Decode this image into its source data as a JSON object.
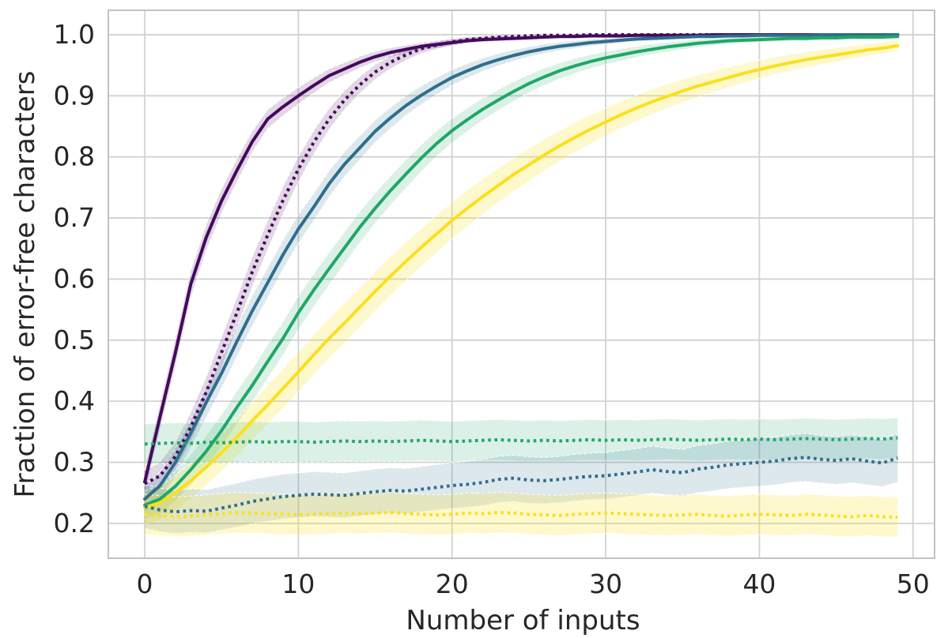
{
  "figure": {
    "x_axis_label": "Number of inputs",
    "y_axis_label": "Fraction of error-free characters"
  },
  "chart_data": {
    "type": "line",
    "title": "",
    "xlabel": "Number of inputs",
    "ylabel": "Fraction of error-free characters",
    "grid": true,
    "legend_position": "none",
    "xlim": [
      -2.37,
      51.4
    ],
    "ylim": [
      0.143,
      1.04
    ],
    "xticks": [
      0,
      10,
      20,
      30,
      40,
      50
    ],
    "yticks": [
      0.2,
      0.3,
      0.4,
      0.5,
      0.6,
      0.7,
      0.8,
      0.9,
      1.0
    ],
    "grid_color": "#d2d2d2",
    "spine_color": "#c2c2c2",
    "tick_text_color": "#262626",
    "palette": {
      "purple": "#45095d",
      "blue": "#2e6d8e",
      "green": "#1fa768",
      "yellow": "#fbe01a"
    },
    "x": [
      0,
      1,
      2,
      3,
      4,
      5,
      6,
      7,
      8,
      9,
      10,
      11,
      12,
      13,
      14,
      15,
      16,
      17,
      18,
      19,
      20,
      21,
      22,
      23,
      24,
      25,
      26,
      27,
      28,
      29,
      30,
      31,
      32,
      33,
      34,
      35,
      36,
      37,
      38,
      39,
      40,
      41,
      42,
      43,
      44,
      45,
      46,
      47,
      48,
      49
    ],
    "series": [
      {
        "name": "purple-solid",
        "color": "purple",
        "style": "solid",
        "band_opacity": 0.16,
        "ci_scale": 0.045,
        "values": [
          0.268,
          0.375,
          0.48,
          0.592,
          0.668,
          0.728,
          0.778,
          0.825,
          0.862,
          0.882,
          0.9,
          0.917,
          0.933,
          0.944,
          0.955,
          0.964,
          0.971,
          0.976,
          0.981,
          0.984,
          0.987,
          0.99,
          0.992,
          0.993,
          0.994,
          0.995,
          0.996,
          0.997,
          0.997,
          0.998,
          0.998,
          0.998,
          0.999,
          0.999,
          0.999,
          0.999,
          0.999,
          1.0,
          1.0,
          1.0,
          1.0,
          1.0,
          1.0,
          1.0,
          1.0,
          1.0,
          1.0,
          1.0,
          1.0,
          1.0
        ]
      },
      {
        "name": "purple-dotted",
        "color": "purple",
        "style": "dotted",
        "band_opacity": 0.16,
        "ci_scale": 0.05,
        "values": [
          0.265,
          0.278,
          0.31,
          0.358,
          0.415,
          0.48,
          0.545,
          0.612,
          0.672,
          0.729,
          0.78,
          0.824,
          0.862,
          0.893,
          0.918,
          0.939,
          0.955,
          0.967,
          0.977,
          0.983,
          0.988,
          0.992,
          0.994,
          0.996,
          0.997,
          0.998,
          0.999,
          0.999,
          0.999,
          1.0,
          1.0,
          1.0,
          1.0,
          1.0,
          1.0,
          1.0,
          1.0,
          1.0,
          1.0,
          1.0,
          1.0,
          1.0,
          1.0,
          1.0,
          1.0,
          1.0,
          1.0,
          1.0,
          1.0,
          1.0
        ]
      },
      {
        "name": "blue-solid",
        "color": "blue",
        "style": "solid",
        "band_opacity": 0.16,
        "ci_scale": 0.05,
        "values": [
          0.24,
          0.262,
          0.3,
          0.348,
          0.398,
          0.446,
          0.498,
          0.548,
          0.594,
          0.64,
          0.682,
          0.718,
          0.756,
          0.788,
          0.815,
          0.842,
          0.864,
          0.884,
          0.901,
          0.916,
          0.93,
          0.941,
          0.951,
          0.959,
          0.966,
          0.972,
          0.977,
          0.981,
          0.984,
          0.987,
          0.989,
          0.991,
          0.993,
          0.994,
          0.995,
          0.996,
          0.997,
          0.997,
          0.998,
          0.998,
          0.999,
          0.999,
          0.999,
          0.999,
          1.0,
          1.0,
          1.0,
          1.0,
          1.0,
          1.0
        ]
      },
      {
        "name": "green-solid",
        "color": "green",
        "style": "solid",
        "band_opacity": 0.16,
        "ci_scale": 0.055,
        "values": [
          0.23,
          0.24,
          0.261,
          0.288,
          0.318,
          0.352,
          0.39,
          0.426,
          0.465,
          0.503,
          0.545,
          0.582,
          0.617,
          0.651,
          0.685,
          0.716,
          0.745,
          0.772,
          0.798,
          0.822,
          0.843,
          0.861,
          0.878,
          0.893,
          0.907,
          0.92,
          0.931,
          0.941,
          0.949,
          0.956,
          0.962,
          0.967,
          0.972,
          0.976,
          0.98,
          0.983,
          0.986,
          0.988,
          0.99,
          0.991,
          0.992,
          0.993,
          0.994,
          0.994,
          0.995,
          0.995,
          0.996,
          0.996,
          0.996,
          0.997
        ]
      },
      {
        "name": "yellow-solid",
        "color": "yellow",
        "style": "solid",
        "band_opacity": 0.22,
        "ci_scale": 0.065,
        "values": [
          0.226,
          0.234,
          0.25,
          0.27,
          0.292,
          0.316,
          0.341,
          0.368,
          0.394,
          0.421,
          0.448,
          0.476,
          0.503,
          0.528,
          0.554,
          0.58,
          0.605,
          0.629,
          0.652,
          0.674,
          0.696,
          0.716,
          0.735,
          0.753,
          0.771,
          0.787,
          0.803,
          0.818,
          0.832,
          0.845,
          0.857,
          0.869,
          0.88,
          0.89,
          0.899,
          0.908,
          0.916,
          0.923,
          0.93,
          0.937,
          0.943,
          0.949,
          0.954,
          0.959,
          0.963,
          0.967,
          0.971,
          0.975,
          0.978,
          0.982
        ]
      },
      {
        "name": "green-dotted",
        "color": "green",
        "style": "dotted",
        "band_opacity": 0.16,
        "ci_scale": 0.07,
        "values": [
          0.33,
          0.331,
          0.332,
          0.331,
          0.333,
          0.332,
          0.333,
          0.334,
          0.333,
          0.334,
          0.334,
          0.333,
          0.334,
          0.335,
          0.334,
          0.335,
          0.334,
          0.335,
          0.336,
          0.335,
          0.334,
          0.335,
          0.336,
          0.337,
          0.336,
          0.335,
          0.336,
          0.335,
          0.336,
          0.337,
          0.336,
          0.337,
          0.336,
          0.337,
          0.338,
          0.337,
          0.336,
          0.337,
          0.338,
          0.337,
          0.338,
          0.337,
          0.338,
          0.339,
          0.338,
          0.337,
          0.338,
          0.339,
          0.338,
          0.34
        ]
      },
      {
        "name": "blue-dotted",
        "color": "blue",
        "style": "dotted",
        "band_opacity": 0.16,
        "ci_scale": 0.085,
        "values": [
          0.228,
          0.222,
          0.219,
          0.221,
          0.22,
          0.225,
          0.23,
          0.236,
          0.24,
          0.244,
          0.246,
          0.248,
          0.247,
          0.246,
          0.249,
          0.252,
          0.254,
          0.253,
          0.256,
          0.259,
          0.262,
          0.264,
          0.267,
          0.272,
          0.274,
          0.271,
          0.27,
          0.272,
          0.275,
          0.277,
          0.278,
          0.281,
          0.284,
          0.288,
          0.285,
          0.283,
          0.289,
          0.292,
          0.296,
          0.298,
          0.3,
          0.302,
          0.306,
          0.308,
          0.305,
          0.303,
          0.306,
          0.302,
          0.299,
          0.307
        ]
      },
      {
        "name": "yellow-dotted",
        "color": "yellow",
        "style": "dotted",
        "band_opacity": 0.22,
        "ci_scale": 0.08,
        "values": [
          0.215,
          0.213,
          0.211,
          0.212,
          0.214,
          0.216,
          0.218,
          0.217,
          0.216,
          0.215,
          0.214,
          0.215,
          0.216,
          0.217,
          0.216,
          0.217,
          0.218,
          0.216,
          0.215,
          0.214,
          0.215,
          0.217,
          0.216,
          0.218,
          0.217,
          0.215,
          0.214,
          0.213,
          0.215,
          0.216,
          0.217,
          0.216,
          0.215,
          0.214,
          0.213,
          0.214,
          0.215,
          0.213,
          0.212,
          0.214,
          0.215,
          0.214,
          0.213,
          0.215,
          0.214,
          0.212,
          0.211,
          0.213,
          0.211,
          0.21
        ]
      }
    ]
  }
}
